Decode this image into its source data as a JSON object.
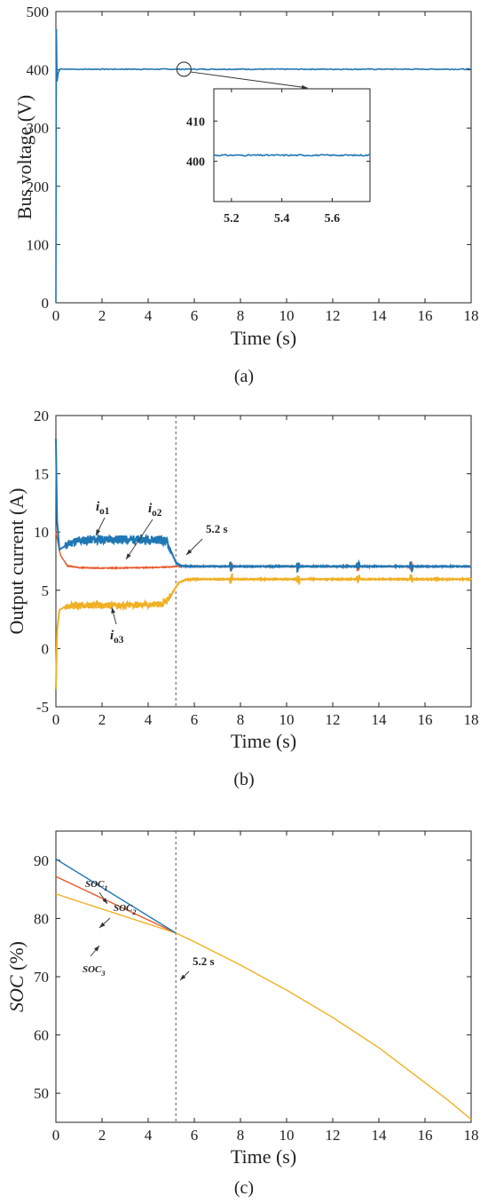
{
  "chart_data": [
    {
      "panel": "(a)",
      "type": "line",
      "xlabel": "Time (s)",
      "ylabel": "Bus voltage (V)",
      "xlim": [
        0,
        18
      ],
      "ylim": [
        0,
        500
      ],
      "xticks": [
        0,
        2,
        4,
        6,
        8,
        10,
        12,
        14,
        16,
        18
      ],
      "yticks": [
        0,
        100,
        200,
        300,
        400,
        500
      ],
      "grid": false,
      "color": "#1f77b4",
      "series": [
        {
          "x": [
            0,
            0.02,
            0.05,
            0.1,
            0.2,
            0.3,
            1,
            5,
            10,
            18
          ],
          "y": [
            0,
            470,
            380,
            395,
            402,
            401,
            401,
            401,
            401,
            401
          ]
        }
      ],
      "inset": {
        "xlim": [
          5.13,
          5.75
        ],
        "ylim": [
          390,
          418
        ],
        "xticks": [
          5.2,
          5.4,
          5.6
        ],
        "yticks": [
          400,
          410
        ],
        "value": 401.5,
        "zoom_point_x": 5.55,
        "zoom_point_y": 401
      }
    },
    {
      "panel": "(b)",
      "type": "line",
      "xlabel": "Time (s)",
      "ylabel": "Output current (A)",
      "xlim": [
        0,
        18
      ],
      "ylim": [
        -5,
        20
      ],
      "xticks": [
        0,
        2,
        4,
        6,
        8,
        10,
        12,
        14,
        16,
        18
      ],
      "yticks": [
        -5,
        0,
        5,
        10,
        15,
        20
      ],
      "grid": false,
      "event_time": 5.2,
      "event_label": "5.2 s",
      "series": [
        {
          "name": "io1",
          "label_main": "i",
          "label_sub": "o1",
          "color": "#1f77b4",
          "x": [
            0,
            0.05,
            0.15,
            0.4,
            0.8,
            1.5,
            3,
            4.5,
            4.8,
            5.0,
            5.2,
            5.4,
            6,
            18
          ],
          "y": [
            18,
            11,
            8.5,
            8.8,
            9.2,
            9.35,
            9.35,
            9.35,
            9.2,
            8.3,
            7.4,
            7.1,
            7.05,
            7.05
          ],
          "noise_until": 5.0
        },
        {
          "name": "io2",
          "label_main": "i",
          "label_sub": "o2",
          "color": "#e8592a",
          "x": [
            0,
            0.05,
            0.2,
            0.5,
            1,
            2,
            4,
            5,
            5.2,
            6,
            18
          ],
          "y": [
            10,
            9.5,
            8.0,
            7.1,
            6.95,
            6.9,
            6.95,
            7.0,
            7.05,
            7.05,
            7.05
          ],
          "noise_until": 0.4
        },
        {
          "name": "io3",
          "label_main": "i",
          "label_sub": "o3",
          "color": "#f0b024",
          "x": [
            0,
            0.05,
            0.15,
            0.4,
            1,
            3,
            4.6,
            5.0,
            5.3,
            5.6,
            6,
            18
          ],
          "y": [
            -3.5,
            1.5,
            3.3,
            3.6,
            3.7,
            3.7,
            3.8,
            4.6,
            5.6,
            5.9,
            5.95,
            5.95
          ],
          "noise_until": 5.0
        }
      ]
    },
    {
      "panel": "(c)",
      "type": "line",
      "xlabel": "Time (s)",
      "ylabel_main": "SOC",
      "ylabel_unit": " (%)",
      "xlim": [
        0,
        18
      ],
      "ylim": [
        45,
        95
      ],
      "xticks": [
        0,
        2,
        4,
        6,
        8,
        10,
        12,
        14,
        16,
        18
      ],
      "yticks": [
        50,
        60,
        70,
        80,
        90
      ],
      "grid": false,
      "event_time": 5.2,
      "event_label": "5.2 s",
      "series": [
        {
          "name": "SOC1",
          "label_main": "SOC",
          "label_sub": "1",
          "color": "#1f77b4",
          "x": [
            0,
            5.2
          ],
          "y": [
            90.2,
            77.5
          ]
        },
        {
          "name": "SOC2",
          "label_main": "SOC",
          "label_sub": "2",
          "color": "#e8592a",
          "x": [
            0,
            5.2
          ],
          "y": [
            87.2,
            77.5
          ]
        },
        {
          "name": "SOC3",
          "label_main": "SOC",
          "label_sub": "3",
          "color": "#f0b024",
          "x": [
            0,
            5.2,
            6,
            8,
            10,
            12,
            14,
            16,
            17,
            18
          ],
          "y": [
            84.2,
            77.5,
            76.0,
            72.0,
            67.7,
            63.0,
            57.8,
            51.8,
            48.8,
            45.5
          ]
        }
      ]
    }
  ]
}
